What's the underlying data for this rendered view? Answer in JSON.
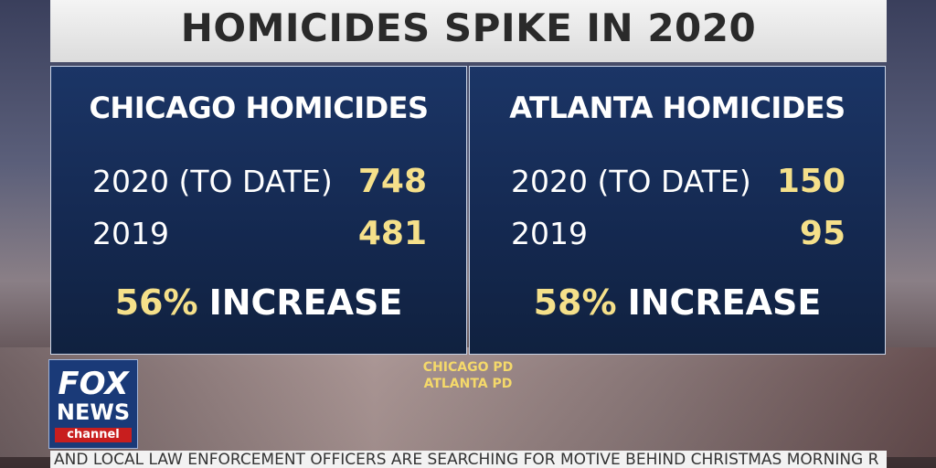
{
  "header": {
    "title": "HOMICIDES SPIKE IN 2020"
  },
  "panels": [
    {
      "title": "CHICAGO HOMICIDES",
      "rows": [
        {
          "label": "2020 (TO DATE)",
          "value": "748"
        },
        {
          "label": "2019",
          "value": "481"
        }
      ],
      "increase": {
        "percent": "56%",
        "label": "INCREASE"
      }
    },
    {
      "title": "ATLANTA HOMICIDES",
      "rows": [
        {
          "label": "2020 (TO DATE)",
          "value": "150"
        },
        {
          "label": "2019",
          "value": "95"
        }
      ],
      "increase": {
        "percent": "58%",
        "label": "INCREASE"
      }
    }
  ],
  "sources": [
    "CHICAGO PD",
    "ATLANTA PD"
  ],
  "logo": {
    "line1": "FOX",
    "line2": "NEWS",
    "line3": "channel"
  },
  "ticker": "AND LOCAL LAW ENFORCEMENT OFFICERS ARE SEARCHING FOR MOTIVE BEHIND CHRISTMAS MORNING R"
}
